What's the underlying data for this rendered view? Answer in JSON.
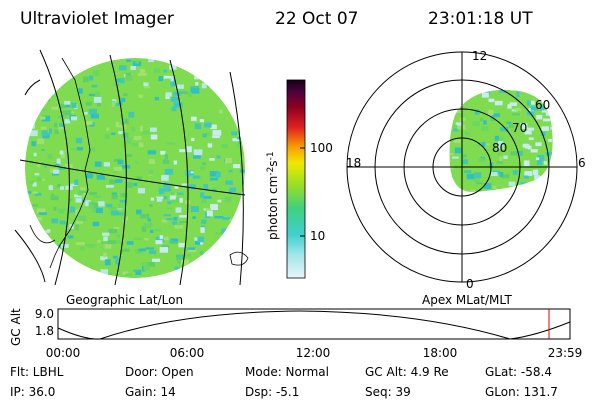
{
  "header": {
    "title": "Ultraviolet Imager",
    "date": "22 Oct 07",
    "time": "23:01:18 UT"
  },
  "left_panel": {
    "label": "Geographic Lat/Lon"
  },
  "colorbar": {
    "label_parts": [
      "photon cm",
      "-2",
      "s",
      "-1"
    ],
    "ticks": [
      "100",
      "10"
    ]
  },
  "polar": {
    "label": "Apex MLat/MLT",
    "mlt_labels": [
      "12",
      "18",
      "6",
      "0"
    ],
    "mlat_labels": [
      "60",
      "70",
      "80"
    ]
  },
  "altitude_plot": {
    "axis_label": "GC Alt",
    "yticks": [
      "9.0",
      "1.8"
    ],
    "xticks": [
      "00:00",
      "06:00",
      "12:00",
      "18:00",
      "23:59"
    ]
  },
  "info": {
    "rows": [
      [
        "Flt: LBHL",
        "Door: Open",
        "Mode: Normal",
        "GC Alt: 4.9 Re",
        "GLat: -58.4"
      ],
      [
        "IP: 36.0",
        "Gain: 14",
        "Dsp:   -5.1",
        "Seq: 39",
        "GLon: 131.7"
      ]
    ]
  }
}
